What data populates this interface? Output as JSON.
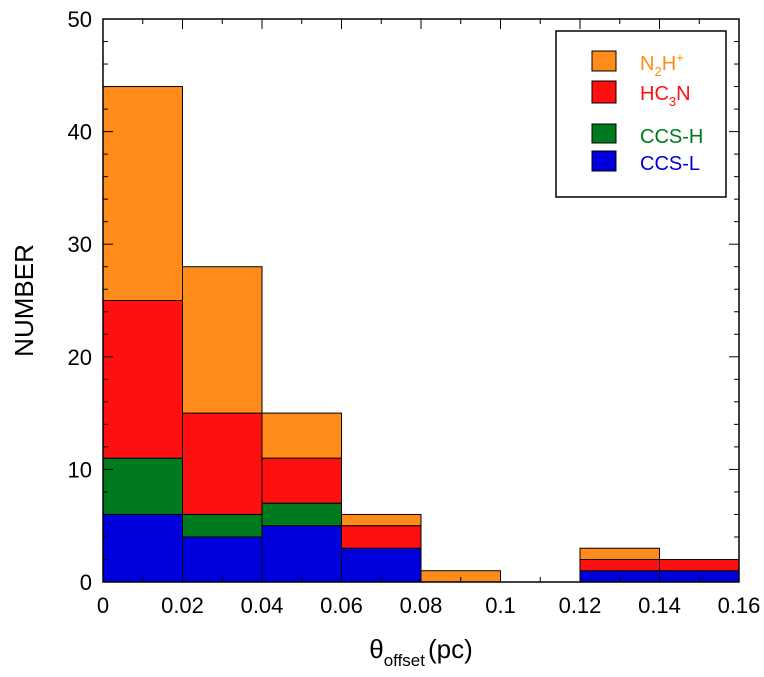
{
  "chart_data": {
    "type": "bar",
    "stacked": true,
    "bins": [
      [
        0,
        0.02
      ],
      [
        0.02,
        0.04
      ],
      [
        0.04,
        0.06
      ],
      [
        0.06,
        0.08
      ],
      [
        0.08,
        0.1
      ],
      [
        0.1,
        0.12
      ],
      [
        0.12,
        0.14
      ],
      [
        0.14,
        0.16
      ]
    ],
    "series": [
      {
        "name": "CCS-L",
        "color": "#0000dd",
        "values": [
          6,
          4,
          5,
          3,
          0,
          0,
          1,
          1
        ]
      },
      {
        "name": "CCS-H",
        "color": "#007a1e",
        "values": [
          5,
          2,
          2,
          0,
          0,
          0,
          0,
          0
        ]
      },
      {
        "name": "HC3N",
        "color": "#ff1010",
        "values": [
          14,
          9,
          4,
          2,
          0,
          0,
          1,
          1
        ]
      },
      {
        "name": "N2H+",
        "color": "#ff8c1a",
        "values": [
          19,
          13,
          4,
          1,
          1,
          0,
          1,
          0
        ]
      }
    ],
    "xlim": [
      0,
      0.16
    ],
    "ylim": [
      0,
      50
    ],
    "xticks": [
      "0",
      "0.02",
      "0.04",
      "0.06",
      "0.08",
      "0.1",
      "0.12",
      "0.14",
      "0.16"
    ],
    "xtick_values": [
      0,
      0.02,
      0.04,
      0.06,
      0.08,
      0.1,
      0.12,
      0.14,
      0.16
    ],
    "yticks": [
      "0",
      "10",
      "20",
      "30",
      "40",
      "50"
    ],
    "ytick_values": [
      0,
      10,
      20,
      30,
      40,
      50
    ],
    "xlabel": {
      "main": "θ",
      "sub": "offset",
      "unit": "(pc)"
    },
    "ylabel": "NUMBER",
    "legend": {
      "position": "top-right",
      "entries": [
        {
          "series": "N2H+",
          "color": "#ff8c1a",
          "parts": [
            [
              "N",
              ""
            ],
            [
              "2",
              "sub"
            ],
            [
              "H",
              ""
            ],
            [
              "+",
              "sup"
            ]
          ]
        },
        {
          "series": "HC3N",
          "color": "#ff1010",
          "parts": [
            [
              "HC",
              ""
            ],
            [
              "3",
              "sub"
            ],
            [
              "N",
              ""
            ]
          ]
        },
        {
          "series": "CCS-H",
          "color": "#007a1e",
          "parts": [
            [
              "CCS-H",
              ""
            ]
          ]
        },
        {
          "series": "CCS-L",
          "color": "#0000dd",
          "parts": [
            [
              "CCS-L",
              ""
            ]
          ]
        }
      ]
    },
    "grid": false
  }
}
